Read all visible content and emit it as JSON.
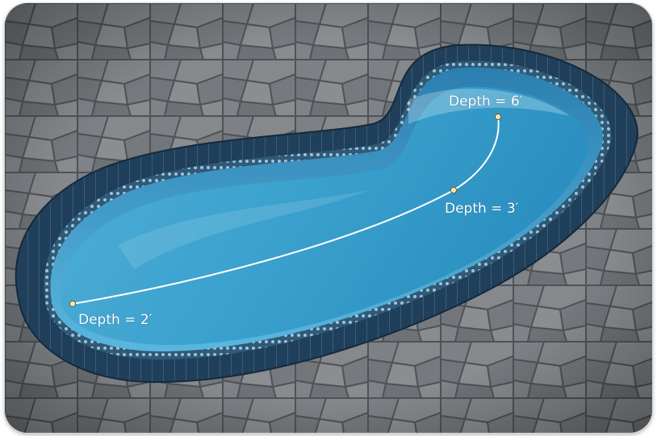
{
  "scene": {
    "description_hidden": "",
    "colors": {
      "paving": "#6f7377",
      "coping": "#1d3b55",
      "water": "#3fa3cf",
      "water_deep": "#1f86b7",
      "tile_band": "#2e5571",
      "path_line": "#ffffff",
      "marker": "#f4e8a6"
    }
  },
  "depth_markers": [
    {
      "label": "Depth = 2′"
    },
    {
      "label": "Depth = 3′"
    },
    {
      "label": "Depth = 6′"
    }
  ]
}
